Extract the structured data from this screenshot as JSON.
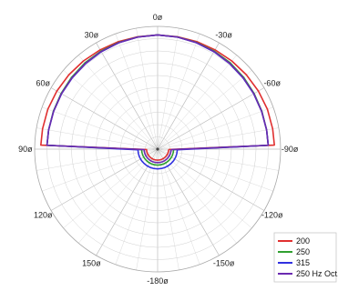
{
  "chart_data": {
    "type": "polar-line",
    "angle_labels": [
      {
        "deg": 0,
        "label": "0ø"
      },
      {
        "deg": 30,
        "label": "30ø"
      },
      {
        "deg": -30,
        "label": "-30ø"
      },
      {
        "deg": 60,
        "label": "60ø"
      },
      {
        "deg": -60,
        "label": "-60ø"
      },
      {
        "deg": 90,
        "label": "90ø"
      },
      {
        "deg": -90,
        "label": "-90ø"
      },
      {
        "deg": 120,
        "label": "120ø"
      },
      {
        "deg": -120,
        "label": "-120ø"
      },
      {
        "deg": 150,
        "label": "150ø"
      },
      {
        "deg": -150,
        "label": "-150ø"
      },
      {
        "deg": 180,
        "label": "-180ø"
      }
    ],
    "radial_rings": 10,
    "angular_grid_step_deg": 10,
    "radius_range": [
      0,
      10
    ],
    "legend_position": "bottom-right",
    "series": [
      {
        "name": "200",
        "color": "#e03030",
        "front": {
          "angles": [
            0,
            10,
            20,
            30,
            40,
            50,
            60,
            70,
            80,
            88
          ],
          "r": [
            9.3,
            9.3,
            9.32,
            9.34,
            9.38,
            9.42,
            9.46,
            9.5,
            9.5,
            9.5
          ]
        },
        "rear_r": 0.9
      },
      {
        "name": "250",
        "color": "#30a030",
        "front": {
          "angles": [
            0,
            10,
            20,
            30,
            40,
            50,
            60,
            70,
            80,
            88
          ],
          "r": [
            9.3,
            9.28,
            9.25,
            9.22,
            9.18,
            9.12,
            9.06,
            9.02,
            9.0,
            9.0
          ]
        },
        "rear_r": 1.3
      },
      {
        "name": "315",
        "color": "#3030e0",
        "front": {
          "angles": [
            0,
            10,
            20,
            30,
            40,
            50,
            60,
            70,
            80,
            88
          ],
          "r": [
            9.3,
            9.27,
            9.22,
            9.16,
            9.1,
            9.05,
            9.02,
            9.0,
            9.0,
            9.0
          ]
        },
        "rear_r": 1.6
      },
      {
        "name": "250 Hz Oct.",
        "color": "#6a2ab0",
        "front": {
          "angles": [
            0,
            10,
            20,
            30,
            40,
            50,
            60,
            70,
            80,
            88
          ],
          "r": [
            9.3,
            9.27,
            9.23,
            9.18,
            9.12,
            9.07,
            9.03,
            9.0,
            9.0,
            9.0
          ]
        },
        "rear_r": 1.1
      }
    ]
  }
}
